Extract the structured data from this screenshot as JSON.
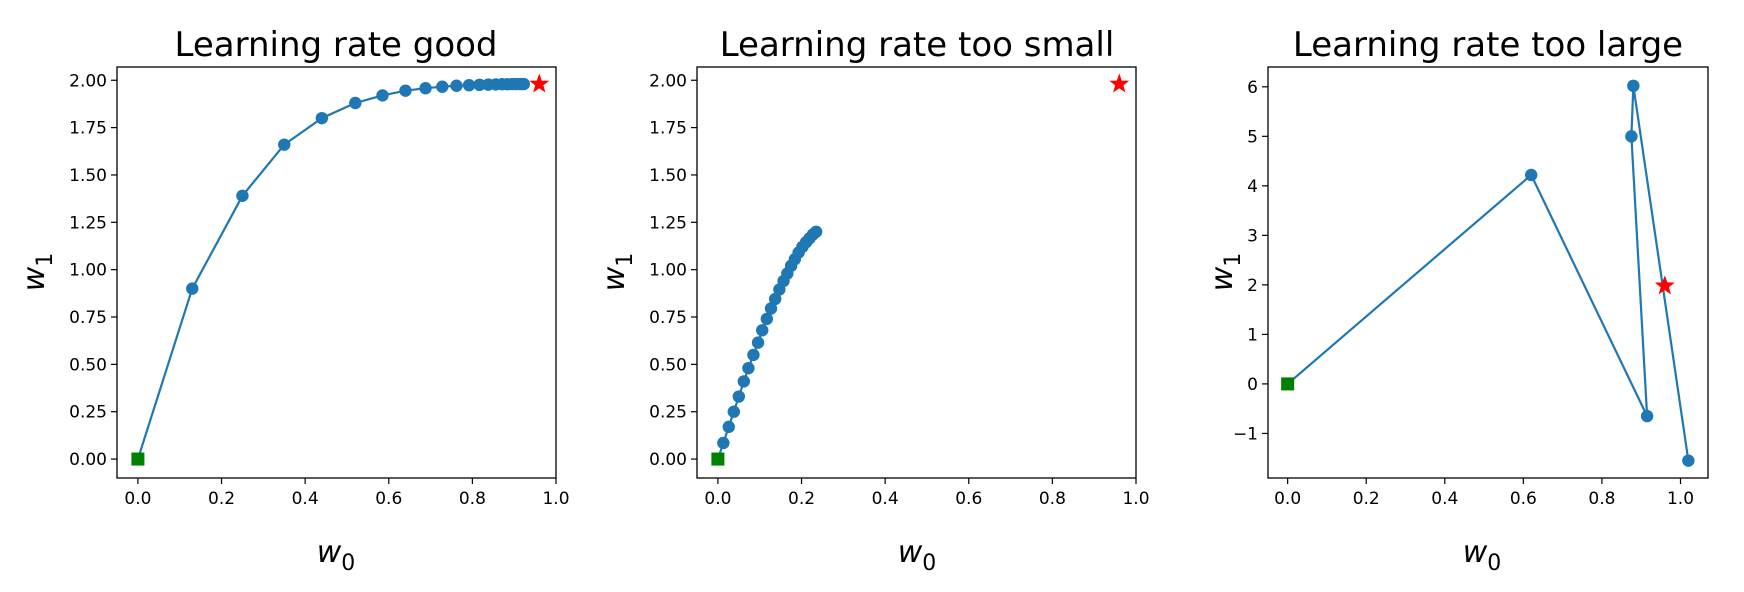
{
  "colors": {
    "series": "#1f77b4",
    "start_marker": "#008000",
    "target_marker": "#ff0000",
    "axes": "#000000"
  },
  "chart_data": [
    {
      "type": "line",
      "title": "Learning rate good",
      "xlabel": "w",
      "xlabel_sub": "0",
      "ylabel": "w",
      "ylabel_sub": "1",
      "xlim": [
        -0.05,
        1.0
      ],
      "ylim": [
        -0.1,
        2.07
      ],
      "xticks": [
        0.0,
        0.2,
        0.4,
        0.6,
        0.8,
        1.0
      ],
      "xtick_labels": [
        "0.0",
        "0.2",
        "0.4",
        "0.6",
        "0.8",
        "1.0"
      ],
      "yticks": [
        0.0,
        0.25,
        0.5,
        0.75,
        1.0,
        1.25,
        1.5,
        1.75,
        2.0
      ],
      "ytick_labels": [
        "0.00",
        "0.25",
        "0.50",
        "0.75",
        "1.00",
        "1.25",
        "1.50",
        "1.75",
        "2.00"
      ],
      "grid": false,
      "series": [
        {
          "x": [
            0.0,
            0.13,
            0.25,
            0.35,
            0.44,
            0.52,
            0.585,
            0.64,
            0.688,
            0.728,
            0.762,
            0.792,
            0.817,
            0.838,
            0.856,
            0.871,
            0.884,
            0.895,
            0.904,
            0.912,
            0.918,
            0.923
          ],
          "y": [
            0.0,
            0.9,
            1.39,
            1.66,
            1.8,
            1.88,
            1.92,
            1.945,
            1.958,
            1.966,
            1.971,
            1.974,
            1.976,
            1.977,
            1.978,
            1.979,
            1.979,
            1.98,
            1.98,
            1.98,
            1.98,
            1.98
          ]
        }
      ],
      "start": {
        "x": 0.0,
        "y": 0.0
      },
      "target": {
        "x": 0.96,
        "y": 1.98
      }
    },
    {
      "type": "line",
      "title": "Learning rate too small",
      "xlabel": "w",
      "xlabel_sub": "0",
      "ylabel": "w",
      "ylabel_sub": "1",
      "xlim": [
        -0.05,
        1.0
      ],
      "ylim": [
        -0.1,
        2.07
      ],
      "xticks": [
        0.0,
        0.2,
        0.4,
        0.6,
        0.8,
        1.0
      ],
      "xtick_labels": [
        "0.0",
        "0.2",
        "0.4",
        "0.6",
        "0.8",
        "1.0"
      ],
      "yticks": [
        0.0,
        0.25,
        0.5,
        0.75,
        1.0,
        1.25,
        1.5,
        1.75,
        2.0
      ],
      "ytick_labels": [
        "0.00",
        "0.25",
        "0.50",
        "0.75",
        "1.00",
        "1.25",
        "1.50",
        "1.75",
        "2.00"
      ],
      "grid": false,
      "series": [
        {
          "x": [
            0.0,
            0.013,
            0.026,
            0.038,
            0.05,
            0.062,
            0.073,
            0.085,
            0.096,
            0.106,
            0.117,
            0.127,
            0.137,
            0.147,
            0.157,
            0.166,
            0.175,
            0.184,
            0.193,
            0.202,
            0.211,
            0.219,
            0.227,
            0.235
          ],
          "y": [
            0.0,
            0.085,
            0.17,
            0.25,
            0.33,
            0.41,
            0.48,
            0.55,
            0.615,
            0.68,
            0.74,
            0.795,
            0.845,
            0.895,
            0.94,
            0.98,
            1.02,
            1.055,
            1.09,
            1.12,
            1.145,
            1.165,
            1.185,
            1.2
          ]
        }
      ],
      "start": {
        "x": 0.0,
        "y": 0.0
      },
      "target": {
        "x": 0.96,
        "y": 1.98
      }
    },
    {
      "type": "line",
      "title": "Learning rate too large",
      "xlabel": "w",
      "xlabel_sub": "0",
      "ylabel": "w",
      "ylabel_sub": "1",
      "xlim": [
        -0.05,
        1.07
      ],
      "ylim": [
        -1.9,
        6.4
      ],
      "xticks": [
        0.0,
        0.2,
        0.4,
        0.6,
        0.8,
        1.0
      ],
      "xtick_labels": [
        "0.0",
        "0.2",
        "0.4",
        "0.6",
        "0.8",
        "1.0"
      ],
      "yticks": [
        -1,
        0,
        1,
        2,
        3,
        4,
        5,
        6
      ],
      "ytick_labels": [
        "−1",
        "0",
        "1",
        "2",
        "3",
        "4",
        "5",
        "6"
      ],
      "grid": false,
      "series": [
        {
          "x": [
            0.0,
            0.62,
            0.915,
            0.875,
            0.88,
            1.02
          ],
          "y": [
            0.0,
            4.22,
            -0.65,
            5.0,
            6.02,
            -1.55
          ]
        }
      ],
      "start": {
        "x": 0.0,
        "y": 0.0
      },
      "target": {
        "x": 0.96,
        "y": 1.98
      }
    }
  ]
}
